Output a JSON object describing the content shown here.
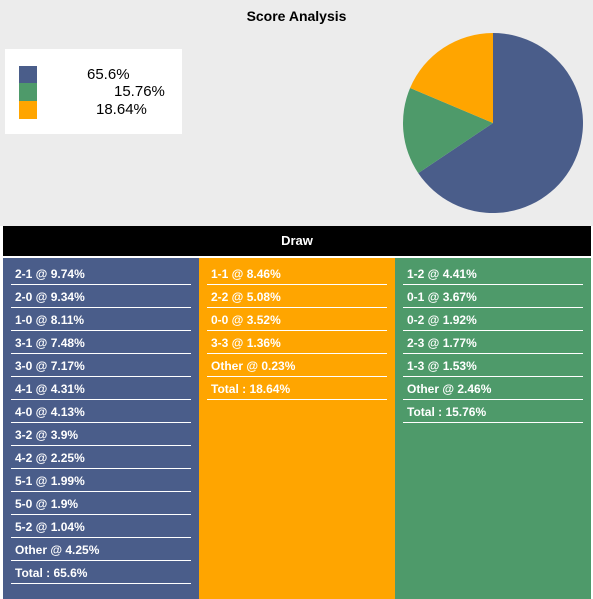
{
  "title": "Score Analysis",
  "colors": {
    "home": "#4a5d8a",
    "draw": "#ffa500",
    "away": "#4e9a6a"
  },
  "chart_data": {
    "type": "pie",
    "title": "Score Analysis",
    "slices": [
      {
        "label": "65.6%",
        "value": 65.6,
        "color": "#4a5d8a"
      },
      {
        "label": "15.76%",
        "value": 15.76,
        "color": "#4e9a6a"
      },
      {
        "label": "18.64%",
        "value": 18.64,
        "color": "#ffa500"
      }
    ]
  },
  "columns": [
    {
      "header": "",
      "color": "#4a5d8a",
      "items": [
        "2-1 @ 9.74%",
        "2-0 @ 9.34%",
        "1-0 @ 8.11%",
        "3-1 @ 7.48%",
        "3-0 @ 7.17%",
        "4-1 @ 4.31%",
        "4-0 @ 4.13%",
        "3-2 @ 3.9%",
        "4-2 @ 2.25%",
        "5-1 @ 1.99%",
        "5-0 @ 1.9%",
        "5-2 @ 1.04%",
        "Other @ 4.25%",
        "Total : 65.6%"
      ]
    },
    {
      "header": "Draw",
      "color": "#ffa500",
      "items": [
        "1-1 @ 8.46%",
        "2-2 @ 5.08%",
        "0-0 @ 3.52%",
        "3-3 @ 1.36%",
        "Other @ 0.23%",
        "Total : 18.64%"
      ]
    },
    {
      "header": "",
      "color": "#4e9a6a",
      "items": [
        "1-2 @ 4.41%",
        "0-1 @ 3.67%",
        "0-2 @ 1.92%",
        "2-3 @ 1.77%",
        "1-3 @ 1.53%",
        "Other @ 2.46%",
        "Total : 15.76%"
      ]
    }
  ]
}
